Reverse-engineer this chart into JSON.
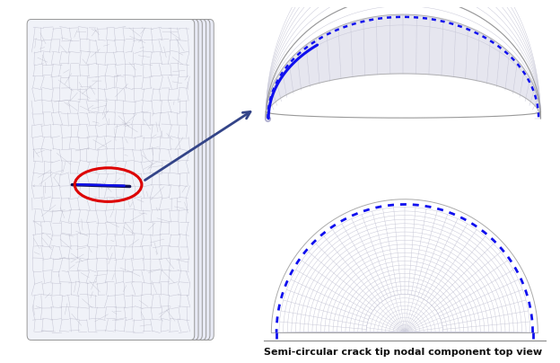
{
  "background_color": "#ffffff",
  "fig_width": 6.24,
  "fig_height": 4.04,
  "dpi": 100,
  "grid_color": "#c8c8d8",
  "crack_color": "#1010ee",
  "crack_ellipse_color": "#dd0000",
  "arrow_color": "#334488",
  "caption": "Semi-circular crack tip nodal component top view",
  "caption_fontsize": 8.0
}
